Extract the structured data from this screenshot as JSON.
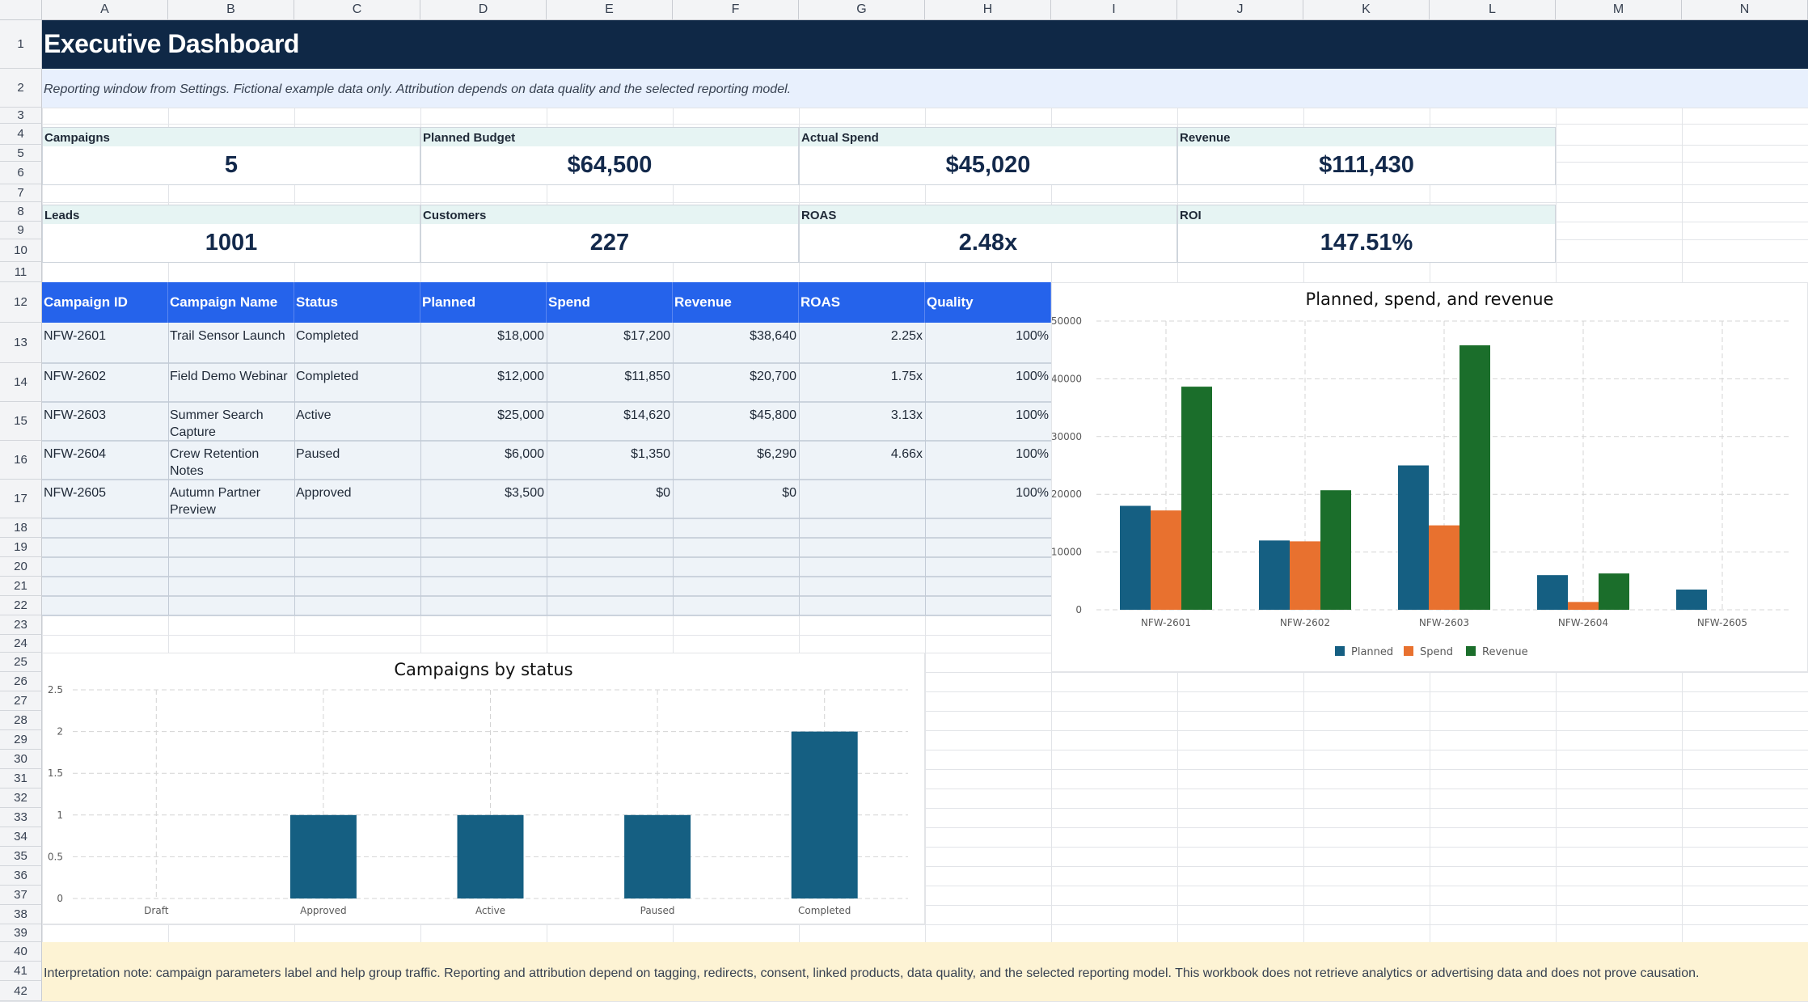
{
  "columns": [
    "A",
    "B",
    "C",
    "D",
    "E",
    "F",
    "G",
    "H",
    "I",
    "J",
    "K",
    "L",
    "M",
    "N"
  ],
  "rows": [
    "1",
    "2",
    "3",
    "4",
    "5",
    "6",
    "7",
    "8",
    "9",
    "10",
    "11",
    "12",
    "13",
    "14",
    "15",
    "16",
    "17",
    "18",
    "19",
    "20",
    "21",
    "22",
    "23",
    "24",
    "25",
    "26",
    "27",
    "28",
    "29",
    "30",
    "31",
    "32",
    "33",
    "34",
    "35",
    "36",
    "37",
    "38",
    "39",
    "40",
    "41",
    "42"
  ],
  "title": "Executive Dashboard",
  "subtitle": "Reporting window from Settings. Fictional example data only. Attribution depends on data quality and the selected reporting model.",
  "kpis": [
    {
      "label": "Campaigns",
      "value": "5"
    },
    {
      "label": "Planned Budget",
      "value": "$64,500"
    },
    {
      "label": "Actual Spend",
      "value": "$45,020"
    },
    {
      "label": "Revenue",
      "value": "$111,430"
    },
    {
      "label": "Leads",
      "value": "1001"
    },
    {
      "label": "Customers",
      "value": "227"
    },
    {
      "label": "ROAS",
      "value": "2.48x"
    },
    {
      "label": "ROI",
      "value": "147.51%"
    }
  ],
  "table": {
    "headers": [
      "Campaign ID",
      "Campaign Name",
      "Status",
      "Planned",
      "Spend",
      "Revenue",
      "ROAS",
      "Quality"
    ],
    "rows": [
      [
        "NFW-2601",
        "Trail Sensor Launch",
        "Completed",
        "$18,000",
        "$17,200",
        "$38,640",
        "2.25x",
        "100%"
      ],
      [
        "NFW-2602",
        "Field Demo Webinar",
        "Completed",
        "$12,000",
        "$11,850",
        "$20,700",
        "1.75x",
        "100%"
      ],
      [
        "NFW-2603",
        "Summer Search Capture",
        "Active",
        "$25,000",
        "$14,620",
        "$45,800",
        "3.13x",
        "100%"
      ],
      [
        "NFW-2604",
        "Crew Retention Notes",
        "Paused",
        "$6,000",
        "$1,350",
        "$6,290",
        "4.66x",
        "100%"
      ],
      [
        "NFW-2605",
        "Autumn Partner Preview",
        "Approved",
        "$3,500",
        "$0",
        "$0",
        "",
        "100%"
      ]
    ]
  },
  "colors": {
    "title_band": "#0f2846",
    "header_blue": "#2563eb",
    "planned": "#155f82",
    "spend": "#e8712f",
    "revenue": "#1b6e2b",
    "status_bar": "#155f82",
    "note_band": "#fdf3d4"
  },
  "chart_data": [
    {
      "type": "bar",
      "title": "Planned, spend, and revenue",
      "categories": [
        "NFW-2601",
        "NFW-2602",
        "NFW-2603",
        "NFW-2604",
        "NFW-2605"
      ],
      "series": [
        {
          "name": "Planned",
          "values": [
            18000,
            12000,
            25000,
            6000,
            3500
          ]
        },
        {
          "name": "Spend",
          "values": [
            17200,
            11850,
            14620,
            1350,
            0
          ]
        },
        {
          "name": "Revenue",
          "values": [
            38640,
            20700,
            45800,
            6290,
            0
          ]
        }
      ],
      "yticks": [
        "0",
        "10000",
        "20000",
        "30000",
        "40000",
        "50000"
      ],
      "ylim": [
        0,
        50000
      ],
      "legend": "bottom",
      "grid": true
    },
    {
      "type": "bar",
      "title": "Campaigns by status",
      "categories": [
        "Draft",
        "Approved",
        "Active",
        "Paused",
        "Completed"
      ],
      "values": [
        0,
        1,
        1,
        1,
        2
      ],
      "yticks": [
        "0",
        "0.5",
        "1",
        "1.5",
        "2",
        "2.5"
      ],
      "ylim": [
        0,
        2.5
      ],
      "grid": true
    }
  ],
  "note": "Interpretation note: campaign parameters label and help group traffic. Reporting and attribution depend on tagging, redirects, consent, linked products, data quality, and the selected reporting model. This workbook does not retrieve analytics or advertising data and does not prove causation."
}
